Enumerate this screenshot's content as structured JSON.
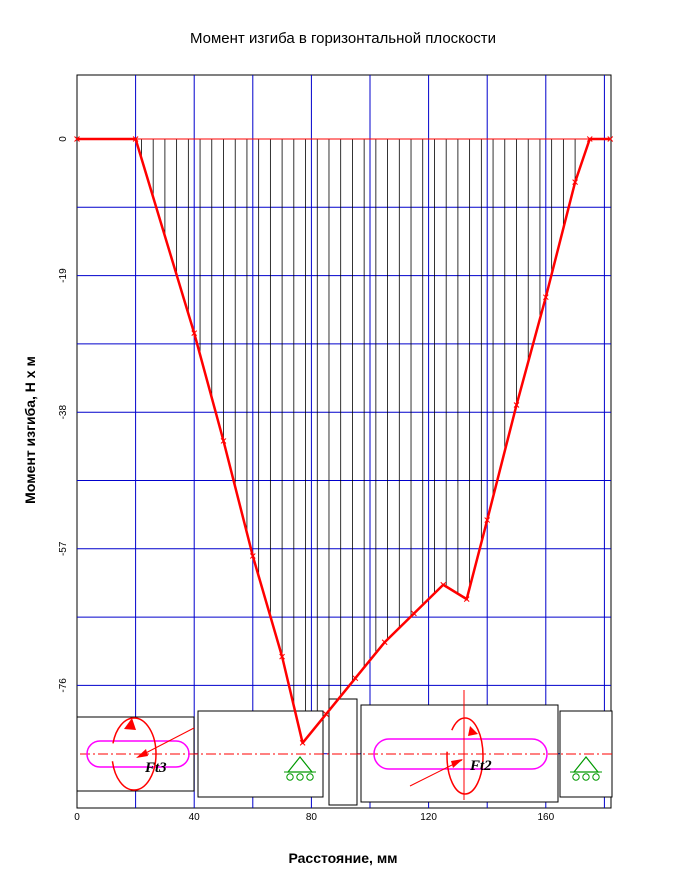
{
  "chart_data": {
    "type": "line",
    "title": "Момент изгиба в горизонтальной плоскости",
    "xlabel": "Расстояние, мм",
    "ylabel": "Момент изгиба, Н х м",
    "xlim": [
      0,
      182
    ],
    "ylim": [
      -90,
      10
    ],
    "x_ticks": [
      0,
      40,
      80,
      120,
      160
    ],
    "y_ticks": [
      0,
      -19,
      -38,
      -57,
      -76
    ],
    "grid": true,
    "line_color": "#ff0000",
    "grid_color": "#0000cc",
    "hatch_color": "#000000",
    "series": [
      {
        "x": [
          0,
          20,
          40,
          50,
          60,
          70,
          77,
          85,
          95,
          105,
          115,
          125,
          133,
          140,
          150,
          160,
          170,
          175,
          182
        ],
        "y": [
          0,
          0,
          -27,
          -42,
          -58,
          -72,
          -84,
          -80,
          -75,
          -70,
          -66,
          -62,
          -64,
          -53,
          -37,
          -22,
          -6,
          0,
          0
        ]
      }
    ]
  },
  "shaft_labels": {
    "left_force": "Ft3",
    "right_force": "Ft2"
  }
}
